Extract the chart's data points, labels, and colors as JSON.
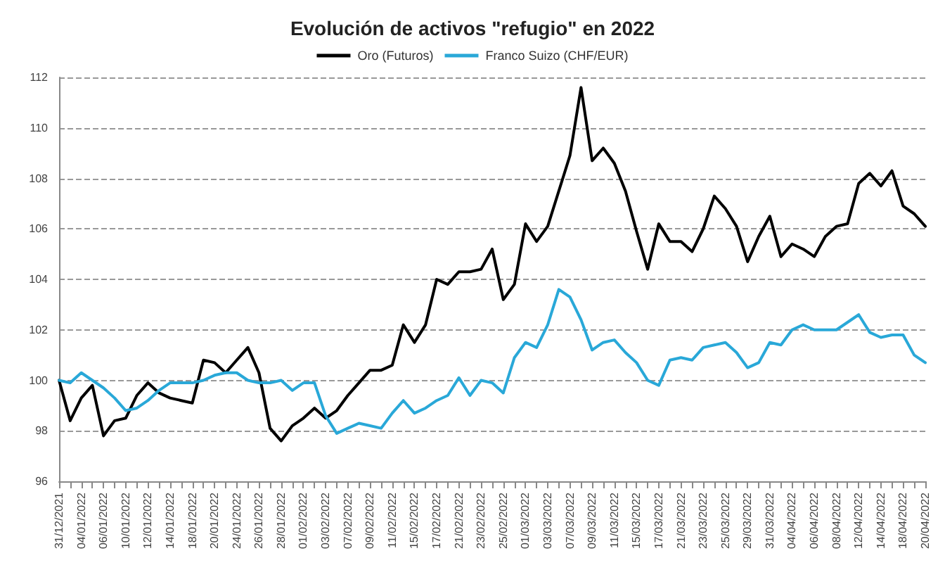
{
  "chart_data": {
    "type": "line",
    "title": "Evolución de activos \"refugio\" en 2022",
    "categories": [
      "31/12/2021",
      null,
      "04/01/2022",
      null,
      "06/01/2022",
      null,
      "10/01/2022",
      null,
      "12/01/2022",
      null,
      "14/01/2022",
      null,
      "18/01/2022",
      null,
      "20/01/2022",
      null,
      "24/01/2022",
      null,
      "26/01/2022",
      null,
      "28/01/2022",
      null,
      "01/02/2022",
      null,
      "03/02/2022",
      null,
      "07/02/2022",
      null,
      "09/02/2022",
      null,
      "11/02/2022",
      null,
      "15/02/2022",
      null,
      "17/02/2022",
      null,
      "21/02/2022",
      null,
      "23/02/2022",
      null,
      "25/02/2022",
      null,
      "01/03/2022",
      null,
      "03/03/2022",
      null,
      "07/03/2022",
      null,
      "09/03/2022",
      null,
      "11/03/2022",
      null,
      "15/03/2022",
      null,
      "17/03/2022",
      null,
      "21/03/2022",
      null,
      "23/03/2022",
      null,
      "25/03/2022",
      null,
      "29/03/2022",
      null,
      "31/03/2022",
      null,
      "04/04/2022",
      null,
      "06/04/2022",
      null,
      "08/04/2022",
      null,
      "12/04/2022",
      null,
      "14/04/2022",
      null,
      "18/04/2022",
      null,
      "20/04/2022"
    ],
    "series": [
      {
        "name": "Oro (Futuros)",
        "color": "#000000",
        "values": [
          100,
          98.4,
          99.3,
          99.8,
          97.8,
          98.4,
          98.5,
          99.4,
          99.9,
          99.5,
          99.3,
          99.2,
          99.1,
          100.8,
          100.7,
          100.3,
          100.8,
          101.3,
          100.3,
          98.1,
          97.6,
          98.2,
          98.5,
          98.9,
          98.5,
          98.8,
          99.4,
          99.9,
          100.4,
          100.4,
          100.6,
          102.2,
          101.5,
          102.2,
          104.0,
          103.8,
          104.3,
          104.3,
          104.4,
          105.2,
          103.2,
          103.8,
          106.2,
          105.5,
          106.1,
          107.5,
          108.9,
          111.6,
          108.7,
          109.2,
          108.6,
          107.5,
          105.9,
          104.4,
          106.2,
          105.5,
          105.5,
          105.1,
          106.0,
          107.3,
          106.8,
          106.1,
          104.7,
          105.7,
          106.5,
          104.9,
          105.4,
          105.2,
          104.9,
          105.7,
          106.1,
          106.2,
          107.8,
          108.2,
          107.7,
          108.3,
          106.9,
          106.6,
          106.1
        ]
      },
      {
        "name": "Franco Suizo (CHF/EUR)",
        "color": "#29a8d8",
        "values": [
          100,
          99.9,
          100.3,
          100,
          99.7,
          99.3,
          98.8,
          98.9,
          99.2,
          99.6,
          99.9,
          99.9,
          99.9,
          100.0,
          100.2,
          100.3,
          100.3,
          100.0,
          99.9,
          99.9,
          100,
          99.6,
          99.9,
          99.9,
          98.6,
          97.9,
          98.1,
          98.3,
          98.2,
          98.1,
          98.7,
          99.2,
          98.7,
          98.9,
          99.2,
          99.4,
          100.1,
          99.4,
          100.0,
          99.9,
          99.5,
          100.9,
          101.5,
          101.3,
          102.2,
          103.6,
          103.3,
          102.4,
          101.2,
          101.5,
          101.6,
          101.1,
          100.7,
          100.0,
          99.8,
          100.8,
          100.9,
          100.8,
          101.3,
          101.4,
          101.5,
          101.1,
          100.5,
          100.7,
          101.5,
          101.4,
          102.0,
          102.2,
          102.0,
          102.0,
          102.0,
          102.3,
          102.6,
          101.9,
          101.7,
          101.8,
          101.8,
          101.0,
          100.7
        ]
      }
    ],
    "ylim": [
      96,
      112
    ],
    "yticks": [
      96,
      98,
      100,
      102,
      104,
      106,
      108,
      110,
      112
    ],
    "grid": "y",
    "legend": "top",
    "marker": "none",
    "line_style": "solid"
  }
}
